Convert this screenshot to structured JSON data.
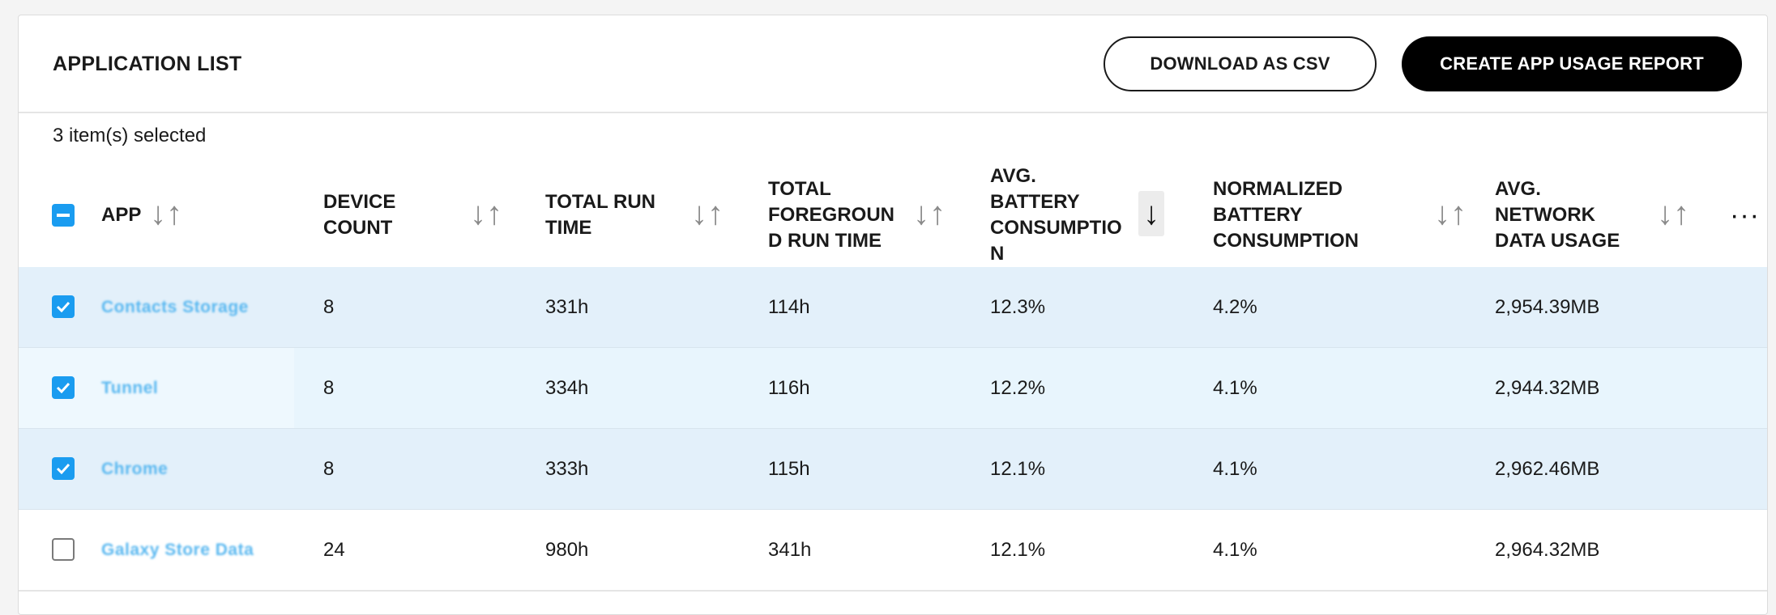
{
  "header": {
    "title": "APPLICATION LIST",
    "download_label": "DOWNLOAD AS CSV",
    "create_report_label": "CREATE APP USAGE REPORT"
  },
  "selection": {
    "count_text": "3 item(s) selected"
  },
  "columns": [
    {
      "label": "APP",
      "sort_state": "unsorted"
    },
    {
      "label": "DEVICE COUNT",
      "sort_state": "unsorted"
    },
    {
      "label": "TOTAL RUN TIME",
      "sort_state": "unsorted"
    },
    {
      "label": "TOTAL FOREGROUND RUN TIME",
      "sort_state": "unsorted"
    },
    {
      "label": "AVG. BATTERY CONSUMPTION",
      "sort_state": "descending"
    },
    {
      "label": "NORMALIZED BATTERY CONSUMPTION",
      "sort_state": "unsorted"
    },
    {
      "label": "AVG. NETWORK DATA USAGE",
      "sort_state": "unsorted"
    }
  ],
  "column_labels_display": {
    "app": "APP",
    "device_count": "DEVICE COUNT",
    "total_run_time": "TOTAL RUN TIME",
    "total_fg": "TOTAL FOREGROUN D RUN TIME",
    "avg_battery": "AVG. BATTERY CONSUMPTIO N",
    "norm_battery": "NORMALIZED BATTERY CONSUMPTION",
    "avg_network": "AVG. NETWORK DATA USAGE"
  },
  "icons": {
    "sort_unsorted": "sort-arrows-icon",
    "sort_desc": "sort-descending-icon",
    "more": "more-horizontal-icon",
    "checkbox_checked": "checkbox-checked-icon",
    "checkbox_partial": "checkbox-indeterminate-icon"
  },
  "colors": {
    "accent": "#1a9cf0",
    "selected_row": "#e3f0fa",
    "link": "#5ab8f0"
  },
  "rows": [
    {
      "selected": true,
      "app": "Contacts Storage",
      "device_count": "8",
      "total_run_time": "331h",
      "total_fg": "114h",
      "avg_battery": "12.3%",
      "norm_battery": "4.2%",
      "avg_network": "2,954.39MB"
    },
    {
      "selected": true,
      "app": "Tunnel",
      "device_count": "8",
      "total_run_time": "334h",
      "total_fg": "116h",
      "avg_battery": "12.2%",
      "norm_battery": "4.1%",
      "avg_network": "2,944.32MB"
    },
    {
      "selected": true,
      "app": "Chrome",
      "device_count": "8",
      "total_run_time": "333h",
      "total_fg": "115h",
      "avg_battery": "12.1%",
      "norm_battery": "4.1%",
      "avg_network": "2,962.46MB"
    },
    {
      "selected": false,
      "app": "Galaxy Store Data",
      "device_count": "24",
      "total_run_time": "980h",
      "total_fg": "341h",
      "avg_battery": "12.1%",
      "norm_battery": "4.1%",
      "avg_network": "2,964.32MB"
    }
  ]
}
